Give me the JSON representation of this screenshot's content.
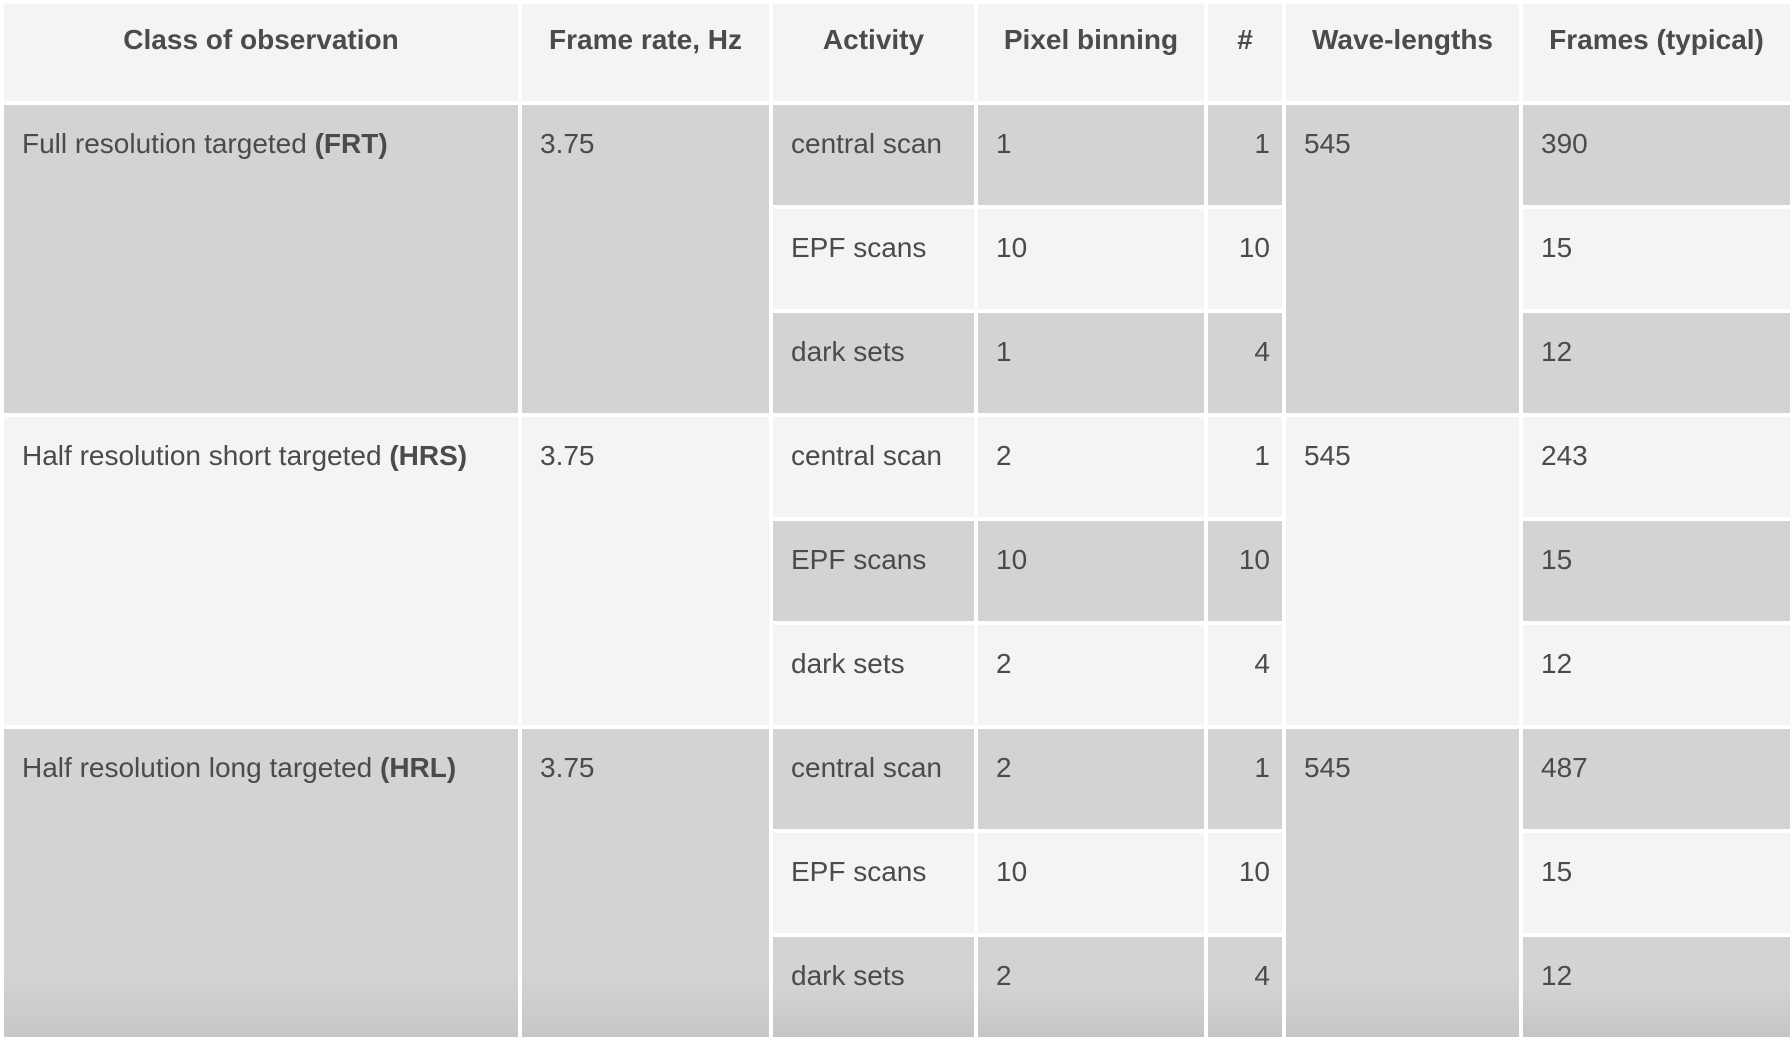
{
  "table": {
    "headers": [
      "Class of observation",
      "Frame rate, Hz",
      "Activity",
      "Pixel binning",
      "#",
      "Wave-lengths",
      "Frames (typical)"
    ],
    "groups": [
      {
        "class_name": "Full resolution targeted",
        "class_abbr": "(FRT)",
        "frame_rate": "3.75",
        "wavelengths": "545",
        "rows": [
          {
            "activity": "central scan",
            "binning": "1",
            "count": "1",
            "frames": "390"
          },
          {
            "activity": "EPF scans",
            "binning": "10",
            "count": "10",
            "frames": "15"
          },
          {
            "activity": "dark sets",
            "binning": "1",
            "count": "4",
            "frames": "12"
          }
        ]
      },
      {
        "class_name": "Half resolution short targeted",
        "class_abbr": "(HRS)",
        "frame_rate": "3.75",
        "wavelengths": "545",
        "rows": [
          {
            "activity": "central scan",
            "binning": "2",
            "count": "1",
            "frames": "243"
          },
          {
            "activity": "EPF scans",
            "binning": "10",
            "count": "10",
            "frames": "15"
          },
          {
            "activity": "dark sets",
            "binning": "2",
            "count": "4",
            "frames": "12"
          }
        ]
      },
      {
        "class_name": "Half resolution long targeted",
        "class_abbr": "(HRL)",
        "frame_rate": "3.75",
        "wavelengths": "545",
        "rows": [
          {
            "activity": "central scan",
            "binning": "2",
            "count": "1",
            "frames": "487"
          },
          {
            "activity": "EPF scans",
            "binning": "10",
            "count": "10",
            "frames": "15"
          },
          {
            "activity": "dark sets",
            "binning": "2",
            "count": "4",
            "frames": "12"
          }
        ]
      }
    ]
  }
}
